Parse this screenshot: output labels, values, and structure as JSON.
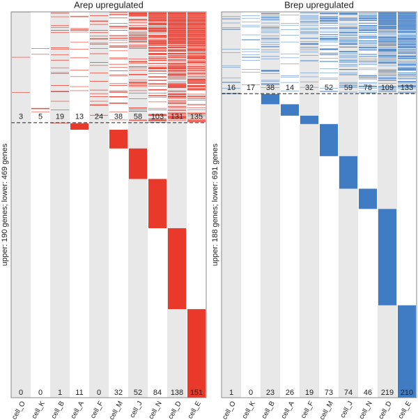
{
  "chart_data": [
    {
      "type": "heatmap",
      "title": "Arep upregulated",
      "ylabel": "upper: 190 genes; lower: 469 genes",
      "categories": [
        "cell_O",
        "cell_K",
        "cell_B",
        "cell_A",
        "cell_F",
        "cell_M",
        "cell_J",
        "cell_N",
        "cell_D",
        "cell_E"
      ],
      "upper_counts": [
        3,
        5,
        19,
        13,
        24,
        38,
        58,
        103,
        131,
        135
      ],
      "lower_counts": [
        0,
        0,
        1,
        11,
        0,
        32,
        52,
        84,
        138,
        151
      ],
      "color": "#e8392b"
    },
    {
      "type": "heatmap",
      "title": "Brep upregulated",
      "ylabel": "upper: 188 genes; lower: 691 genes",
      "categories": [
        "cell_O",
        "cell_K",
        "cell_B",
        "cell_A",
        "cell_F",
        "cell_M",
        "cell_J",
        "cell_N",
        "cell_D",
        "cell_E"
      ],
      "upper_counts": [
        16,
        17,
        38,
        14,
        32,
        52,
        59,
        78,
        109,
        133
      ],
      "lower_counts": [
        1,
        0,
        23,
        26,
        19,
        73,
        74,
        46,
        219,
        210
      ],
      "color": "#3f7cc4"
    }
  ]
}
